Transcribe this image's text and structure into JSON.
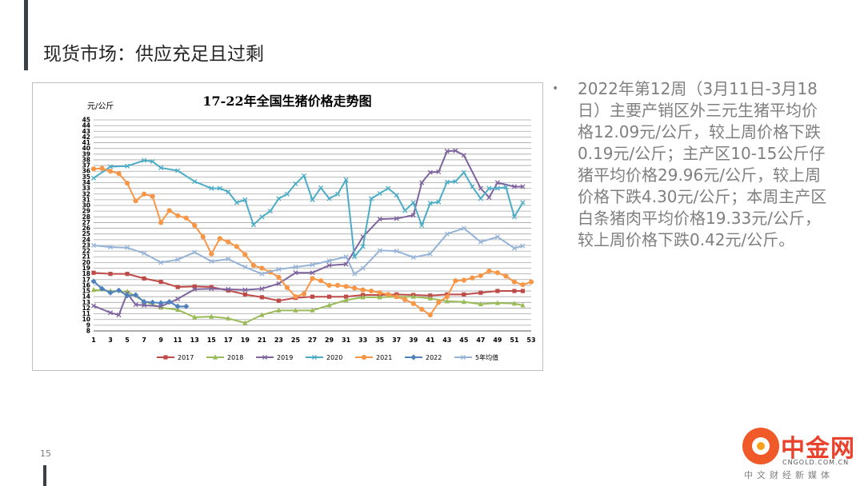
{
  "slide": {
    "title": "现货市场：供应充足且过剩",
    "page_number": "15"
  },
  "bullet": {
    "text": "2022年第12周（3月11日-3月18日）主要产销区外三元生猪平均价格12.09元/公斤，较上周价格下跌0.19元/公斤；主产区10-15公斤仔猪平均价格29.96元/公斤，较上周价格下跌4.30元/公斤；本周主产区白条猪肉平均价格19.33元/公斤，较上周价格下跌0.42元/公斤。"
  },
  "logo": {
    "name": "中金网",
    "domain": "CNGOLD.COM.CN",
    "slogan": "中文财经新媒体"
  },
  "chart_data": {
    "type": "line",
    "title": "17-22年全国生猪价格走势图",
    "ylabel": "元/公斤",
    "ylim": [
      8,
      45
    ],
    "yticks": [
      8,
      9,
      10,
      11,
      12,
      13,
      14,
      15,
      16,
      17,
      18,
      19,
      20,
      21,
      22,
      23,
      24,
      25,
      26,
      27,
      28,
      29,
      30,
      31,
      32,
      33,
      34,
      35,
      36,
      37,
      38,
      39,
      40,
      41,
      42,
      43,
      44,
      45
    ],
    "xlim": [
      1,
      53
    ],
    "xticks": [
      1,
      3,
      5,
      7,
      9,
      11,
      13,
      15,
      17,
      19,
      21,
      23,
      25,
      27,
      29,
      31,
      33,
      35,
      37,
      39,
      41,
      43,
      45,
      47,
      49,
      51,
      53
    ],
    "grid": true,
    "legend_position": "bottom",
    "series": [
      {
        "name": "2017",
        "color": "#be4b48",
        "marker": "square",
        "x": [
          1,
          3,
          5,
          7,
          9,
          11,
          13,
          15,
          17,
          19,
          21,
          23,
          25,
          27,
          29,
          31,
          33,
          35,
          37,
          39,
          41,
          43,
          45,
          47,
          49,
          51,
          52
        ],
        "values": [
          18.2,
          18.0,
          18.0,
          17.2,
          16.6,
          15.7,
          15.8,
          15.7,
          15.1,
          14.4,
          13.9,
          13.3,
          13.8,
          14.0,
          14.0,
          14.0,
          14.3,
          14.3,
          14.4,
          14.3,
          14.2,
          14.4,
          14.4,
          14.7,
          15.0,
          15.0,
          15.0
        ]
      },
      {
        "name": "2018",
        "color": "#9bbb59",
        "marker": "triangle",
        "x": [
          1,
          3,
          5,
          7,
          9,
          11,
          13,
          15,
          17,
          19,
          21,
          23,
          25,
          27,
          29,
          31,
          33,
          35,
          37,
          39,
          41,
          43,
          45,
          47,
          49,
          51,
          52
        ],
        "values": [
          15.2,
          15.0,
          14.9,
          13.2,
          12.1,
          11.7,
          10.4,
          10.5,
          10.2,
          9.4,
          10.8,
          11.6,
          11.6,
          11.6,
          12.5,
          13.4,
          13.9,
          13.9,
          14.0,
          14.0,
          13.7,
          13.2,
          13.1,
          12.7,
          12.9,
          12.8,
          12.5
        ]
      },
      {
        "name": "2019",
        "color": "#7e649e",
        "marker": "cross",
        "x": [
          1,
          3,
          4,
          5,
          6,
          7,
          9,
          11,
          13,
          15,
          17,
          19,
          21,
          23,
          25,
          27,
          29,
          31,
          33,
          35,
          37,
          39,
          40,
          41,
          42,
          43,
          44,
          45,
          47,
          48,
          49,
          51,
          52
        ],
        "values": [
          12.4,
          11.2,
          10.8,
          14.6,
          12.6,
          12.5,
          12.3,
          13.6,
          15.3,
          15.4,
          15.3,
          15.2,
          15.4,
          16.3,
          18.2,
          18.2,
          19.5,
          19.7,
          24.5,
          27.6,
          27.7,
          28.3,
          34.0,
          35.8,
          35.9,
          39.5,
          39.6,
          38.8,
          33.0,
          31.4,
          34.0,
          33.3,
          33.3
        ]
      },
      {
        "name": "2020",
        "color": "#4bacc6",
        "marker": "cross",
        "x": [
          1,
          3,
          5,
          7,
          8,
          9,
          11,
          13,
          15,
          16,
          17,
          18,
          19,
          20,
          21,
          22,
          23,
          24,
          25,
          26,
          27,
          28,
          29,
          30,
          31,
          32,
          33,
          34,
          35,
          36,
          37,
          38,
          39,
          40,
          41,
          42,
          43,
          44,
          45,
          46,
          47,
          48,
          49,
          50,
          51,
          52
        ],
        "values": [
          34.8,
          36.8,
          36.9,
          37.9,
          37.7,
          36.6,
          36.1,
          34.2,
          33.0,
          33.0,
          32.4,
          30.5,
          31.0,
          26.6,
          28.0,
          29.0,
          31.2,
          32.0,
          33.8,
          35.2,
          31.0,
          33.1,
          31.2,
          32.0,
          34.5,
          21.0,
          22.8,
          31.2,
          32.1,
          33.0,
          31.8,
          29.1,
          30.5,
          26.5,
          30.4,
          30.6,
          34.1,
          34.2,
          35.8,
          33.3,
          31.2,
          33.0,
          33.0,
          33.2,
          28.0,
          30.5
        ]
      },
      {
        "name": "2021",
        "color": "#f79646",
        "marker": "circle",
        "x": [
          1,
          2,
          3,
          4,
          5,
          6,
          7,
          8,
          9,
          10,
          11,
          12,
          13,
          14,
          15,
          16,
          17,
          18,
          19,
          20,
          21,
          22,
          23,
          24,
          25,
          26,
          27,
          28,
          29,
          30,
          31,
          32,
          33,
          34,
          35,
          36,
          37,
          38,
          39,
          40,
          41,
          42,
          43,
          44,
          45,
          46,
          47,
          48,
          49,
          50,
          51,
          52,
          53
        ],
        "values": [
          36.4,
          36.5,
          36.0,
          35.6,
          33.9,
          30.8,
          32.0,
          31.6,
          27.0,
          29.1,
          28.2,
          27.8,
          26.5,
          24.5,
          21.5,
          24.2,
          23.6,
          22.8,
          21.4,
          19.5,
          19.0,
          18.3,
          17.4,
          15.6,
          14.0,
          14.5,
          17.2,
          16.8,
          16.0,
          16.0,
          15.8,
          15.5,
          15.2,
          15.0,
          14.7,
          14.4,
          14.0,
          13.5,
          12.8,
          11.8,
          10.8,
          13.0,
          14.0,
          16.8,
          16.9,
          17.3,
          17.7,
          18.5,
          18.2,
          17.6,
          16.6,
          16.1,
          16.6
        ]
      },
      {
        "name": "2022",
        "color": "#4f81bd",
        "marker": "diamond",
        "x": [
          1,
          2,
          3,
          4,
          5,
          6,
          7,
          8,
          9,
          10,
          11,
          12
        ],
        "values": [
          16.7,
          15.4,
          14.7,
          15.1,
          14.2,
          14.3,
          13.1,
          13.0,
          12.9,
          13.1,
          12.3,
          12.3
        ]
      },
      {
        "name": "5年均值",
        "color": "#95b3d7",
        "marker": "cross",
        "x": [
          1,
          3,
          5,
          7,
          9,
          11,
          13,
          15,
          17,
          19,
          21,
          23,
          25,
          27,
          29,
          31,
          32,
          33,
          35,
          37,
          39,
          41,
          43,
          45,
          47,
          49,
          51,
          52
        ],
        "values": [
          23.0,
          22.7,
          22.6,
          21.6,
          20.0,
          20.5,
          21.8,
          20.2,
          20.6,
          19.2,
          18.0,
          18.8,
          19.2,
          19.6,
          20.3,
          21.0,
          18.0,
          19.0,
          22.1,
          22.0,
          20.9,
          21.5,
          25.0,
          26.0,
          23.6,
          24.5,
          22.5,
          22.9
        ]
      }
    ]
  }
}
